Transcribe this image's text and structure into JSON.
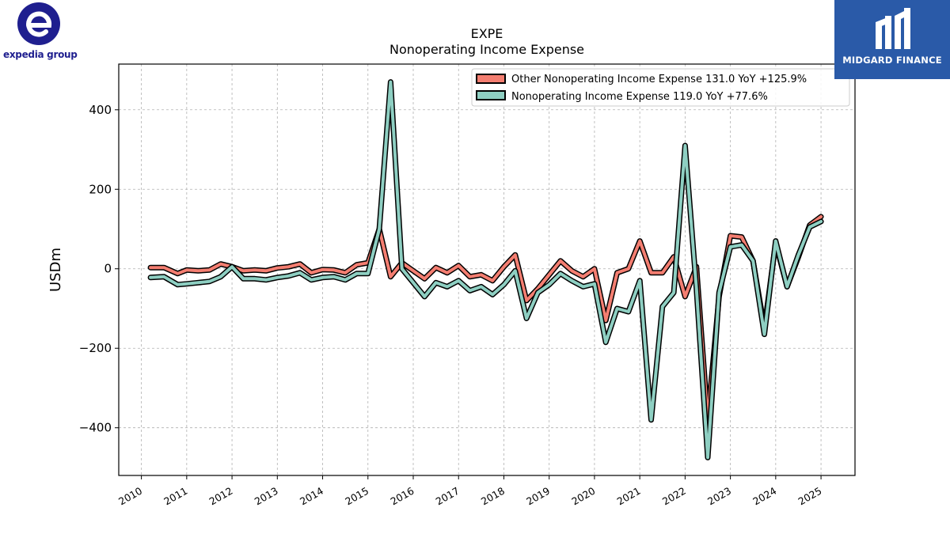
{
  "brand": {
    "left_logo_text": "expedia group",
    "right_logo_text": "MIDGARD FINANCE"
  },
  "chart_data": {
    "type": "line",
    "title": "EXPE",
    "subtitle": "Nonoperating Income Expense",
    "xlabel": "",
    "ylabel": "USDm",
    "ylim": [
      -520,
      515
    ],
    "xlim": [
      2009.5,
      2025.75
    ],
    "yticks": [
      -400,
      -200,
      0,
      200,
      400
    ],
    "ytick_labels": [
      "−400",
      "−200",
      "0",
      "200",
      "400"
    ],
    "xticks": [
      2010,
      2011,
      2012,
      2013,
      2014,
      2015,
      2016,
      2017,
      2018,
      2019,
      2020,
      2021,
      2022,
      2023,
      2024,
      2025
    ],
    "xtick_labels": [
      "2010",
      "2011",
      "2012",
      "2013",
      "2014",
      "2015",
      "2016",
      "2017",
      "2018",
      "2019",
      "2020",
      "2021",
      "2022",
      "2023",
      "2024",
      "2025"
    ],
    "grid": true,
    "legend_position": "top-right",
    "x": [
      2010.2,
      2010.5,
      2010.8,
      2011.0,
      2011.25,
      2011.5,
      2011.75,
      2012.0,
      2012.25,
      2012.5,
      2012.75,
      2013.0,
      2013.25,
      2013.5,
      2013.75,
      2014.0,
      2014.25,
      2014.5,
      2014.75,
      2015.0,
      2015.25,
      2015.5,
      2015.75,
      2016.0,
      2016.25,
      2016.5,
      2016.75,
      2017.0,
      2017.25,
      2017.5,
      2017.75,
      2018.0,
      2018.25,
      2018.5,
      2018.75,
      2019.0,
      2019.25,
      2019.5,
      2019.75,
      2020.0,
      2020.25,
      2020.5,
      2020.75,
      2021.0,
      2021.25,
      2021.5,
      2021.75,
      2022.0,
      2022.25,
      2022.5,
      2022.75,
      2023.0,
      2023.25,
      2023.5,
      2023.75,
      2024.0,
      2024.25,
      2024.5,
      2024.75,
      2025.0
    ],
    "series": [
      {
        "name": "Other Nonoperating Income Expense",
        "legend_label": "Other Nonoperating Income Expense  131.0 YoY +125.9%",
        "color": "#f47e71",
        "values": [
          3,
          3,
          -12,
          -3,
          -5,
          -3,
          12,
          5,
          -5,
          -3,
          -5,
          2,
          5,
          12,
          -10,
          -2,
          -3,
          -10,
          10,
          15,
          100,
          -20,
          15,
          -5,
          -25,
          3,
          -10,
          8,
          -20,
          -15,
          -30,
          5,
          35,
          -80,
          -50,
          -15,
          20,
          -5,
          -20,
          0,
          -130,
          -10,
          0,
          70,
          -10,
          -10,
          30,
          -70,
          5,
          -380,
          -70,
          83,
          80,
          20,
          -150,
          65,
          -45,
          30,
          110,
          131
        ]
      },
      {
        "name": "Nonoperating Income Expense",
        "legend_label": "Nonoperating Income Expense  119.0 YoY +77.6%",
        "color": "#8ecfc2",
        "values": [
          -22,
          -20,
          -40,
          -38,
          -35,
          -32,
          -20,
          5,
          -25,
          -25,
          -28,
          -22,
          -18,
          -10,
          -28,
          -22,
          -20,
          -28,
          -12,
          -12,
          100,
          470,
          0,
          -35,
          -70,
          -35,
          -45,
          -30,
          -55,
          -45,
          -65,
          -40,
          -5,
          -125,
          -60,
          -40,
          -12,
          -30,
          -45,
          -38,
          -185,
          -100,
          -108,
          -30,
          -380,
          -95,
          -60,
          310,
          -50,
          -475,
          -60,
          55,
          60,
          20,
          -165,
          70,
          -45,
          35,
          105,
          119
        ]
      }
    ]
  }
}
